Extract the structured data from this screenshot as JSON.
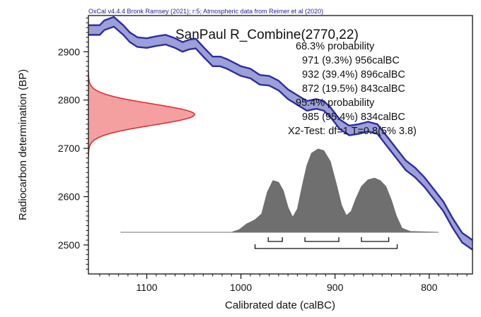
{
  "header": "OxCal v4.4.4 Bronk Ramsey (2021); r:5; Atmospheric data from Reimer et al (2020)",
  "chart_data": {
    "type": "area",
    "title": "SanPaul R_Combine(2770,22)",
    "xlabel": "Calibrated date (calBC)",
    "ylabel": "Radiocarbon determination (BP)",
    "xlim": [
      1162,
      754
    ],
    "ylim": [
      2440,
      2975
    ],
    "x_ticks": [
      1100,
      1000,
      900,
      800
    ],
    "y_ticks": [
      2500,
      2600,
      2700,
      2800,
      2900
    ],
    "annotations": [
      "68.3% probability",
      "971 (9.3%) 956calBC",
      "932 (39.4%) 896calBC",
      "872 (19.5%) 843calBC",
      "95.4% probability",
      "985 (95.4%) 834calBC",
      "X2-Test: df=1 T=0.8(5% 3.8)"
    ],
    "measurement": {
      "mean_bp": 2770,
      "error": 22,
      "color": "#e03030",
      "fill": "#f4a0a0"
    },
    "calibration_curve": {
      "color": "#2b2f9e",
      "fill": "#9c9fd8",
      "half_width_bp": 10,
      "points": [
        [
          1162,
          2945
        ],
        [
          1150,
          2945
        ],
        [
          1145,
          2955
        ],
        [
          1135,
          2962
        ],
        [
          1125,
          2945
        ],
        [
          1118,
          2930
        ],
        [
          1110,
          2920
        ],
        [
          1100,
          2918
        ],
        [
          1090,
          2922
        ],
        [
          1080,
          2925
        ],
        [
          1070,
          2918
        ],
        [
          1062,
          2910
        ],
        [
          1055,
          2915
        ],
        [
          1048,
          2917
        ],
        [
          1040,
          2900
        ],
        [
          1030,
          2880
        ],
        [
          1022,
          2880
        ],
        [
          1015,
          2875
        ],
        [
          1008,
          2868
        ],
        [
          1000,
          2860
        ],
        [
          990,
          2855
        ],
        [
          980,
          2842
        ],
        [
          970,
          2840
        ],
        [
          960,
          2830
        ],
        [
          950,
          2812
        ],
        [
          940,
          2800
        ],
        [
          930,
          2788
        ],
        [
          920,
          2792
        ],
        [
          912,
          2788
        ],
        [
          905,
          2775
        ],
        [
          895,
          2750
        ],
        [
          885,
          2737
        ],
        [
          875,
          2740
        ],
        [
          865,
          2745
        ],
        [
          855,
          2740
        ],
        [
          845,
          2715
        ],
        [
          835,
          2690
        ],
        [
          825,
          2665
        ],
        [
          815,
          2650
        ],
        [
          805,
          2630
        ],
        [
          795,
          2605
        ],
        [
          785,
          2580
        ],
        [
          775,
          2545
        ],
        [
          765,
          2515
        ],
        [
          754,
          2500
        ]
      ]
    },
    "posterior": {
      "color": "#6f6f6f",
      "points": [
        [
          1128,
          0
        ],
        [
          1010,
          0
        ],
        [
          1002,
          0.03
        ],
        [
          994,
          0.1
        ],
        [
          985,
          0.15
        ],
        [
          978,
          0.22
        ],
        [
          972,
          0.48
        ],
        [
          966,
          0.62
        ],
        [
          960,
          0.6
        ],
        [
          955,
          0.5
        ],
        [
          950,
          0.3
        ],
        [
          945,
          0.18
        ],
        [
          940,
          0.28
        ],
        [
          935,
          0.55
        ],
        [
          930,
          0.8
        ],
        [
          925,
          0.95
        ],
        [
          918,
          1.0
        ],
        [
          912,
          0.98
        ],
        [
          905,
          0.85
        ],
        [
          898,
          0.55
        ],
        [
          893,
          0.32
        ],
        [
          888,
          0.2
        ],
        [
          883,
          0.25
        ],
        [
          878,
          0.4
        ],
        [
          872,
          0.55
        ],
        [
          865,
          0.63
        ],
        [
          858,
          0.65
        ],
        [
          852,
          0.62
        ],
        [
          846,
          0.55
        ],
        [
          840,
          0.38
        ],
        [
          835,
          0.2
        ],
        [
          829,
          0.05
        ],
        [
          820,
          0.01
        ],
        [
          790,
          0
        ]
      ]
    },
    "ranges_68": [
      [
        971,
        956
      ],
      [
        932,
        896
      ],
      [
        872,
        843
      ]
    ],
    "ranges_95": [
      [
        985,
        834
      ]
    ],
    "grid": false
  }
}
